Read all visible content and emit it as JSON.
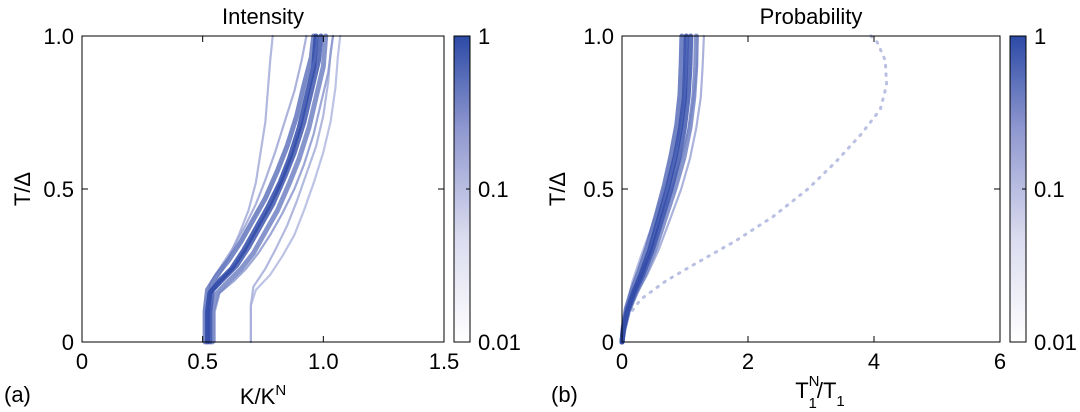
{
  "chart_data": [
    {
      "type": "heatmap",
      "panel_label": "(a)",
      "title": "Intensity",
      "xlabel_base": "K/K",
      "xlabel_sup": "N",
      "ylabel": "T/Δ",
      "xlim": [
        0,
        1.5
      ],
      "ylim": [
        0,
        1.0
      ],
      "xticks": [
        0,
        0.5,
        1,
        1.5
      ],
      "xtick_labels": [
        "0",
        "0.5",
        "1.0",
        "1.5"
      ],
      "yticks": [
        0,
        0.5,
        1.0
      ],
      "ytick_labels": [
        "0",
        "0.5",
        "1.0"
      ],
      "colorbar": {
        "scale": "log",
        "range": [
          0.01,
          1
        ],
        "ticks": [
          1,
          0.1,
          0.01
        ],
        "tick_labels": [
          "1",
          "0.1",
          "0.01"
        ]
      },
      "series": [
        {
          "intensity": 1.0,
          "points": [
            [
              0.52,
              0
            ],
            [
              0.52,
              0.1
            ],
            [
              0.53,
              0.16
            ],
            [
              0.57,
              0.2
            ],
            [
              0.62,
              0.24
            ],
            [
              0.67,
              0.3
            ],
            [
              0.72,
              0.37
            ],
            [
              0.77,
              0.44
            ],
            [
              0.82,
              0.52
            ],
            [
              0.86,
              0.6
            ],
            [
              0.9,
              0.7
            ],
            [
              0.93,
              0.8
            ],
            [
              0.96,
              0.9
            ],
            [
              0.97,
              1.0
            ]
          ]
        },
        {
          "intensity": 0.9,
          "points": [
            [
              0.53,
              0
            ],
            [
              0.53,
              0.1
            ],
            [
              0.54,
              0.17
            ],
            [
              0.59,
              0.21
            ],
            [
              0.64,
              0.25
            ],
            [
              0.69,
              0.31
            ],
            [
              0.74,
              0.38
            ],
            [
              0.79,
              0.45
            ],
            [
              0.84,
              0.54
            ],
            [
              0.88,
              0.62
            ],
            [
              0.92,
              0.72
            ],
            [
              0.95,
              0.82
            ],
            [
              0.98,
              0.92
            ],
            [
              0.99,
              1.0
            ]
          ]
        },
        {
          "intensity": 0.7,
          "points": [
            [
              0.51,
              0
            ],
            [
              0.51,
              0.1
            ],
            [
              0.52,
              0.17
            ],
            [
              0.56,
              0.22
            ],
            [
              0.61,
              0.27
            ],
            [
              0.66,
              0.33
            ],
            [
              0.71,
              0.4
            ],
            [
              0.76,
              0.47
            ],
            [
              0.81,
              0.56
            ],
            [
              0.85,
              0.64
            ],
            [
              0.89,
              0.74
            ],
            [
              0.92,
              0.84
            ],
            [
              0.95,
              0.93
            ],
            [
              0.96,
              1.0
            ]
          ]
        },
        {
          "intensity": 0.6,
          "points": [
            [
              0.54,
              0
            ],
            [
              0.54,
              0.1
            ],
            [
              0.56,
              0.16
            ],
            [
              0.61,
              0.2
            ],
            [
              0.66,
              0.24
            ],
            [
              0.71,
              0.29
            ],
            [
              0.76,
              0.36
            ],
            [
              0.81,
              0.43
            ],
            [
              0.86,
              0.52
            ],
            [
              0.9,
              0.6
            ],
            [
              0.94,
              0.7
            ],
            [
              0.97,
              0.8
            ],
            [
              1.0,
              0.9
            ],
            [
              1.01,
              1.0
            ]
          ]
        },
        {
          "intensity": 0.45,
          "points": [
            [
              0.55,
              0
            ],
            [
              0.55,
              0.1
            ],
            [
              0.57,
              0.16
            ],
            [
              0.63,
              0.2
            ],
            [
              0.68,
              0.24
            ],
            [
              0.73,
              0.29
            ],
            [
              0.78,
              0.35
            ],
            [
              0.83,
              0.42
            ],
            [
              0.88,
              0.5
            ],
            [
              0.92,
              0.58
            ],
            [
              0.96,
              0.68
            ],
            [
              0.99,
              0.78
            ],
            [
              1.02,
              0.88
            ],
            [
              1.04,
              1.0
            ]
          ]
        },
        {
          "intensity": 0.35,
          "points": [
            [
              0.52,
              0
            ],
            [
              0.52,
              0.12
            ],
            [
              0.53,
              0.19
            ],
            [
              0.57,
              0.24
            ],
            [
              0.62,
              0.3
            ],
            [
              0.67,
              0.37
            ],
            [
              0.72,
              0.45
            ],
            [
              0.76,
              0.53
            ],
            [
              0.8,
              0.62
            ],
            [
              0.84,
              0.72
            ],
            [
              0.88,
              0.82
            ],
            [
              0.91,
              0.92
            ],
            [
              0.93,
              1.0
            ]
          ]
        },
        {
          "intensity": 0.3,
          "points": [
            [
              0.52,
              0
            ],
            [
              0.52,
              0.1
            ],
            [
              0.53,
              0.16
            ],
            [
              0.57,
              0.22
            ],
            [
              0.61,
              0.28
            ],
            [
              0.65,
              0.35
            ],
            [
              0.69,
              0.43
            ],
            [
              0.72,
              0.52
            ],
            [
              0.74,
              0.62
            ],
            [
              0.76,
              0.72
            ],
            [
              0.77,
              0.82
            ],
            [
              0.78,
              0.92
            ],
            [
              0.79,
              1.0
            ]
          ]
        },
        {
          "intensity": 0.3,
          "points": [
            [
              0.7,
              0
            ],
            [
              0.7,
              0.12
            ],
            [
              0.71,
              0.18
            ],
            [
              0.76,
              0.24
            ],
            [
              0.8,
              0.3
            ],
            [
              0.85,
              0.38
            ],
            [
              0.89,
              0.46
            ],
            [
              0.93,
              0.55
            ],
            [
              0.97,
              0.64
            ],
            [
              1.0,
              0.74
            ],
            [
              1.02,
              0.85
            ],
            [
              1.03,
              0.95
            ],
            [
              1.04,
              1.0
            ]
          ]
        },
        {
          "intensity": 0.22,
          "points": [
            [
              0.7,
              0
            ],
            [
              0.7,
              0.12
            ],
            [
              0.72,
              0.17
            ],
            [
              0.78,
              0.22
            ],
            [
              0.83,
              0.28
            ],
            [
              0.88,
              0.35
            ],
            [
              0.92,
              0.43
            ],
            [
              0.96,
              0.52
            ],
            [
              1.0,
              0.62
            ],
            [
              1.03,
              0.72
            ],
            [
              1.05,
              0.83
            ],
            [
              1.06,
              0.93
            ],
            [
              1.07,
              1.0
            ]
          ]
        }
      ]
    },
    {
      "type": "heatmap",
      "panel_label": "(b)",
      "title": "Probability",
      "xlabel_base": "T",
      "xlabel_sup": "N",
      "xlabel_sub": "1",
      "xlabel_mid": "/T",
      "xlabel_sub2": "1",
      "ylabel": "T/Δ",
      "xlim": [
        0,
        6
      ],
      "ylim": [
        0,
        1.0
      ],
      "xticks": [
        0,
        2,
        4,
        6
      ],
      "xtick_labels": [
        "0",
        "2",
        "4",
        "6"
      ],
      "yticks": [
        0,
        0.5,
        1.0
      ],
      "ytick_labels": [
        "0",
        "0.5",
        "1.0"
      ],
      "colorbar": {
        "scale": "log",
        "range": [
          0.01,
          1
        ],
        "ticks": [
          1,
          0.1,
          0.01
        ],
        "tick_labels": [
          "1",
          "0.1",
          "0.01"
        ]
      },
      "series": [
        {
          "intensity": 1.0,
          "points": [
            [
              0,
              0
            ],
            [
              0.02,
              0.04
            ],
            [
              0.08,
              0.1
            ],
            [
              0.18,
              0.16
            ],
            [
              0.3,
              0.22
            ],
            [
              0.44,
              0.3
            ],
            [
              0.58,
              0.4
            ],
            [
              0.72,
              0.5
            ],
            [
              0.84,
              0.6
            ],
            [
              0.93,
              0.7
            ],
            [
              0.99,
              0.8
            ],
            [
              1.01,
              0.9
            ],
            [
              1.02,
              1.0
            ]
          ]
        },
        {
          "intensity": 0.9,
          "points": [
            [
              0,
              0
            ],
            [
              0.02,
              0.04
            ],
            [
              0.09,
              0.1
            ],
            [
              0.2,
              0.16
            ],
            [
              0.33,
              0.22
            ],
            [
              0.48,
              0.3
            ],
            [
              0.63,
              0.4
            ],
            [
              0.78,
              0.5
            ],
            [
              0.9,
              0.6
            ],
            [
              0.99,
              0.7
            ],
            [
              1.05,
              0.8
            ],
            [
              1.08,
              0.9
            ],
            [
              1.09,
              1.0
            ]
          ]
        },
        {
          "intensity": 0.75,
          "points": [
            [
              0,
              0
            ],
            [
              0.02,
              0.05
            ],
            [
              0.07,
              0.11
            ],
            [
              0.16,
              0.17
            ],
            [
              0.27,
              0.23
            ],
            [
              0.4,
              0.31
            ],
            [
              0.54,
              0.41
            ],
            [
              0.67,
              0.51
            ],
            [
              0.78,
              0.61
            ],
            [
              0.87,
              0.71
            ],
            [
              0.92,
              0.81
            ],
            [
              0.94,
              0.91
            ],
            [
              0.95,
              1.0
            ]
          ]
        },
        {
          "intensity": 0.6,
          "points": [
            [
              0,
              0
            ],
            [
              0.03,
              0.04
            ],
            [
              0.1,
              0.1
            ],
            [
              0.22,
              0.16
            ],
            [
              0.36,
              0.22
            ],
            [
              0.52,
              0.3
            ],
            [
              0.68,
              0.4
            ],
            [
              0.84,
              0.5
            ],
            [
              0.98,
              0.6
            ],
            [
              1.08,
              0.7
            ],
            [
              1.14,
              0.8
            ],
            [
              1.17,
              0.9
            ],
            [
              1.18,
              1.0
            ]
          ]
        },
        {
          "intensity": 0.45,
          "points": [
            [
              0,
              0
            ],
            [
              0.02,
              0.04
            ],
            [
              0.08,
              0.1
            ],
            [
              0.19,
              0.16
            ],
            [
              0.32,
              0.22
            ],
            [
              0.47,
              0.3
            ],
            [
              0.63,
              0.4
            ],
            [
              0.79,
              0.5
            ],
            [
              0.94,
              0.6
            ],
            [
              1.06,
              0.7
            ],
            [
              1.14,
              0.8
            ],
            [
              1.19,
              0.9
            ],
            [
              1.2,
              1.0
            ]
          ]
        },
        {
          "intensity": 0.35,
          "points": [
            [
              0,
              0
            ],
            [
              0.03,
              0.04
            ],
            [
              0.11,
              0.1
            ],
            [
              0.24,
              0.16
            ],
            [
              0.4,
              0.22
            ],
            [
              0.58,
              0.3
            ],
            [
              0.76,
              0.4
            ],
            [
              0.94,
              0.5
            ],
            [
              1.08,
              0.6
            ],
            [
              1.18,
              0.7
            ],
            [
              1.25,
              0.8
            ],
            [
              1.28,
              0.9
            ],
            [
              1.3,
              1.0
            ]
          ]
        },
        {
          "intensity": 0.28,
          "points": [
            [
              0,
              0
            ],
            [
              0.02,
              0.05
            ],
            [
              0.07,
              0.12
            ],
            [
              0.17,
              0.2
            ],
            [
              0.3,
              0.28
            ],
            [
              0.46,
              0.37
            ],
            [
              0.62,
              0.47
            ],
            [
              0.77,
              0.57
            ],
            [
              0.89,
              0.67
            ],
            [
              0.96,
              0.77
            ],
            [
              0.99,
              0.87
            ],
            [
              1.0,
              1.0
            ]
          ]
        },
        {
          "intensity": 0.25,
          "dashed": true,
          "points": [
            [
              0,
              0
            ],
            [
              0.08,
              0.08
            ],
            [
              0.3,
              0.14
            ],
            [
              0.7,
              0.2
            ],
            [
              1.2,
              0.26
            ],
            [
              1.8,
              0.33
            ],
            [
              2.4,
              0.41
            ],
            [
              2.95,
              0.5
            ],
            [
              3.4,
              0.59
            ],
            [
              3.8,
              0.68
            ],
            [
              4.1,
              0.76
            ],
            [
              4.2,
              0.84
            ],
            [
              4.18,
              0.92
            ],
            [
              4.05,
              0.98
            ],
            [
              3.95,
              1.0
            ]
          ]
        }
      ]
    }
  ]
}
